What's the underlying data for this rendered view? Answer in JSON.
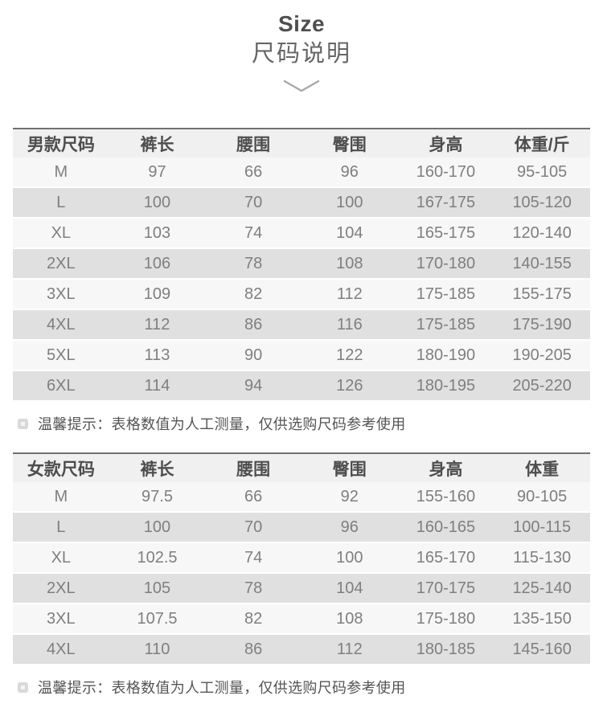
{
  "header": {
    "title_en": "Size",
    "title_zh": "尺码说明",
    "chevron_icon": "chevron-down",
    "chevron_color": "#a8a8a8"
  },
  "colors": {
    "table_top_border": "#707070",
    "header_row_bg": "#f0f0f0",
    "odd_row_bg": "#f7f7f7",
    "even_row_bg": "#e0e0e0",
    "header_text": "#4d4d4d",
    "cell_text": "#7f7f7f",
    "note_text": "#555555"
  },
  "men_table": {
    "columns": [
      "男款尺码",
      "裤长",
      "腰围",
      "臀围",
      "身高",
      "体重/斤"
    ],
    "rows": [
      [
        "M",
        "97",
        "66",
        "96",
        "160-170",
        "95-105"
      ],
      [
        "L",
        "100",
        "70",
        "100",
        "167-175",
        "105-120"
      ],
      [
        "XL",
        "103",
        "74",
        "104",
        "165-175",
        "120-140"
      ],
      [
        "2XL",
        "106",
        "78",
        "108",
        "170-180",
        "140-155"
      ],
      [
        "3XL",
        "109",
        "82",
        "112",
        "175-185",
        "155-175"
      ],
      [
        "4XL",
        "112",
        "86",
        "116",
        "175-185",
        "175-190"
      ],
      [
        "5XL",
        "113",
        "90",
        "122",
        "180-190",
        "190-205"
      ],
      [
        "6XL",
        "114",
        "94",
        "126",
        "180-195",
        "205-220"
      ]
    ],
    "note": "温馨提示：表格数值为人工测量，仅供选购尺码参考使用"
  },
  "women_table": {
    "columns": [
      "女款尺码",
      "裤长",
      "腰围",
      "臀围",
      "身高",
      "体重"
    ],
    "rows": [
      [
        "M",
        "97.5",
        "66",
        "92",
        "155-160",
        "90-105"
      ],
      [
        "L",
        "100",
        "70",
        "96",
        "160-165",
        "100-115"
      ],
      [
        "XL",
        "102.5",
        "74",
        "100",
        "165-170",
        "115-130"
      ],
      [
        "2XL",
        "105",
        "78",
        "104",
        "170-175",
        "125-140"
      ],
      [
        "3XL",
        "107.5",
        "82",
        "108",
        "175-180",
        "135-150"
      ],
      [
        "4XL",
        "110",
        "86",
        "112",
        "180-185",
        "145-160"
      ]
    ],
    "note": "温馨提示：表格数值为人工测量，仅供选购尺码参考使用"
  }
}
